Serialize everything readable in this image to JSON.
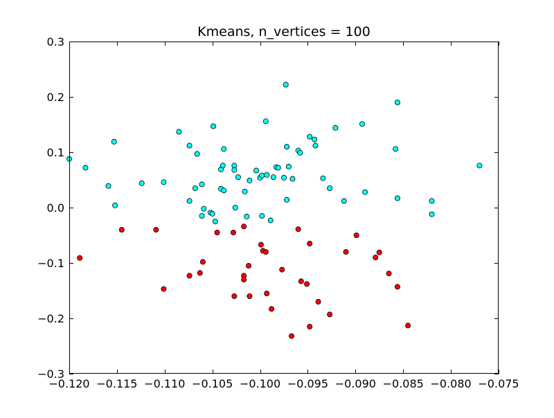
{
  "chart_data": {
    "type": "scatter",
    "title": "Kmeans, n_vertices = 100",
    "xlabel": "",
    "ylabel": "",
    "xlim": [
      -0.12,
      -0.075
    ],
    "ylim": [
      -0.3,
      0.3
    ],
    "xticks": [
      -0.12,
      -0.115,
      -0.11,
      -0.105,
      -0.1,
      -0.095,
      -0.09,
      -0.085,
      -0.08,
      -0.075
    ],
    "xtick_labels": [
      "−0.120",
      "−0.115",
      "−0.110",
      "−0.105",
      "−0.100",
      "−0.095",
      "−0.090",
      "−0.085",
      "−0.080",
      "−0.075"
    ],
    "yticks": [
      -0.3,
      -0.2,
      -0.1,
      0.0,
      0.1,
      0.2,
      0.3
    ],
    "ytick_labels": [
      "−0.3",
      "−0.2",
      "−0.1",
      "0.0",
      "0.1",
      "0.2",
      "0.3"
    ],
    "grid": false,
    "legend": "none",
    "series": [
      {
        "color": "#00ffff",
        "points": [
          [
            -0.12,
            0.088
          ],
          [
            -0.1183,
            0.072
          ],
          [
            -0.1159,
            0.039
          ],
          [
            -0.1153,
            0.119
          ],
          [
            -0.1152,
            0.004
          ],
          [
            -0.1124,
            0.044
          ],
          [
            -0.1101,
            0.046
          ],
          [
            -0.1085,
            0.137
          ],
          [
            -0.1074,
            0.112
          ],
          [
            -0.1074,
            0.012
          ],
          [
            -0.1068,
            0.035
          ],
          [
            -0.1066,
            0.097
          ],
          [
            -0.1061,
            0.042
          ],
          [
            -0.1061,
            -0.015
          ],
          [
            -0.1059,
            -0.002
          ],
          [
            -0.1052,
            -0.009
          ],
          [
            -0.105,
            -0.011
          ],
          [
            -0.1049,
            0.147
          ],
          [
            -0.1047,
            -0.025
          ],
          [
            -0.1041,
            0.069
          ],
          [
            -0.1041,
            0.034
          ],
          [
            -0.1039,
            0.076
          ],
          [
            -0.1038,
            0.106
          ],
          [
            -0.1038,
            0.031
          ],
          [
            -0.1027,
            0.076
          ],
          [
            -0.1027,
            0.068
          ],
          [
            -0.1026,
            0.0
          ],
          [
            -0.1023,
            0.055
          ],
          [
            -0.1016,
            0.029
          ],
          [
            -0.1014,
            -0.016
          ],
          [
            -0.1011,
            0.049
          ],
          [
            -0.1004,
            0.067
          ],
          [
            -0.1,
            0.054
          ],
          [
            -0.0998,
            0.058
          ],
          [
            -0.0998,
            -0.015
          ],
          [
            -0.0994,
            0.156
          ],
          [
            -0.0993,
            0.059
          ],
          [
            -0.0989,
            -0.023
          ],
          [
            -0.0986,
            0.055
          ],
          [
            -0.0983,
            0.073
          ],
          [
            -0.0981,
            0.072
          ],
          [
            -0.0975,
            0.054
          ],
          [
            -0.0973,
            0.222
          ],
          [
            -0.0972,
            0.11
          ],
          [
            -0.0972,
            0.014
          ],
          [
            -0.097,
            0.074
          ],
          [
            -0.0966,
            0.052
          ],
          [
            -0.096,
            0.103
          ],
          [
            -0.0958,
            0.099
          ],
          [
            -0.0948,
            0.128
          ],
          [
            -0.0943,
            0.123
          ],
          [
            -0.0942,
            0.112
          ],
          [
            -0.0934,
            0.053
          ],
          [
            -0.0927,
            0.035
          ],
          [
            -0.0921,
            0.144
          ],
          [
            -0.0912,
            0.012
          ],
          [
            -0.0893,
            0.151
          ],
          [
            -0.089,
            0.028
          ],
          [
            -0.0858,
            0.106
          ],
          [
            -0.0856,
            0.19
          ],
          [
            -0.0856,
            0.017
          ],
          [
            -0.082,
            0.012
          ],
          [
            -0.082,
            -0.012
          ],
          [
            -0.077,
            0.076
          ]
        ]
      },
      {
        "color": "#ff0000",
        "points": [
          [
            -0.1189,
            -0.091
          ],
          [
            -0.1145,
            -0.04
          ],
          [
            -0.1109,
            -0.04
          ],
          [
            -0.1101,
            -0.147
          ],
          [
            -0.1074,
            -0.123
          ],
          [
            -0.1063,
            -0.118
          ],
          [
            -0.106,
            -0.098
          ],
          [
            -0.1045,
            -0.045
          ],
          [
            -0.1028,
            -0.045
          ],
          [
            -0.1027,
            -0.16
          ],
          [
            -0.1017,
            -0.034
          ],
          [
            -0.1017,
            -0.123
          ],
          [
            -0.1017,
            -0.13
          ],
          [
            -0.1012,
            -0.105
          ],
          [
            -0.1011,
            -0.16
          ],
          [
            -0.0999,
            -0.067
          ],
          [
            -0.0997,
            -0.078
          ],
          [
            -0.0994,
            -0.08
          ],
          [
            -0.0993,
            -0.155
          ],
          [
            -0.0988,
            -0.183
          ],
          [
            -0.0977,
            -0.112
          ],
          [
            -0.0967,
            -0.232
          ],
          [
            -0.096,
            -0.039
          ],
          [
            -0.0957,
            -0.133
          ],
          [
            -0.0951,
            -0.138
          ],
          [
            -0.0948,
            -0.065
          ],
          [
            -0.0948,
            -0.215
          ],
          [
            -0.0939,
            -0.17
          ],
          [
            -0.0927,
            -0.193
          ],
          [
            -0.091,
            -0.08
          ],
          [
            -0.0899,
            -0.05
          ],
          [
            -0.0879,
            -0.09
          ],
          [
            -0.0875,
            -0.081
          ],
          [
            -0.0865,
            -0.119
          ],
          [
            -0.0856,
            -0.143
          ],
          [
            -0.0845,
            -0.213
          ]
        ]
      }
    ]
  }
}
